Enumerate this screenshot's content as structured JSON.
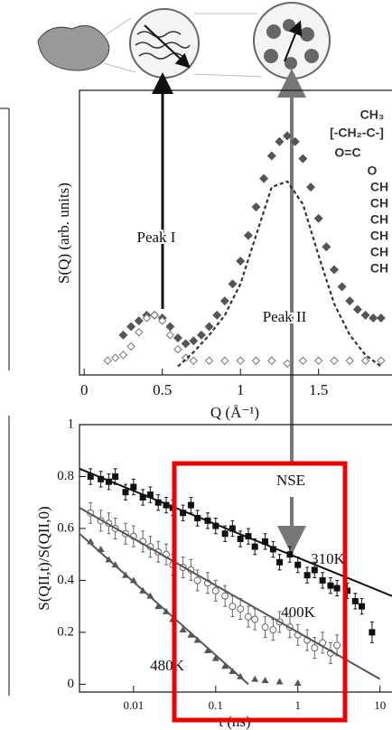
{
  "chart_data": [
    {
      "type": "scatter",
      "x_label": "Q (Å⁻¹)",
      "y_label": "S(Q) (arb. units)",
      "xlim": [
        -0.03,
        1.97
      ],
      "ylim": [
        0,
        1
      ],
      "xticks": [
        0,
        0.5,
        1,
        1.5
      ],
      "annotations": [
        "Peak I",
        "Peak II"
      ],
      "structure": [
        "CH₃",
        "[-CH₂-C-]",
        "O=C",
        "O",
        "CH",
        "CH",
        "CH",
        "CH",
        "CH",
        "CH"
      ],
      "series": [
        {
          "style": "diamond-filled",
          "color": "#555555",
          "x": [
            0.25,
            0.3,
            0.35,
            0.4,
            0.45,
            0.5,
            0.55,
            0.6,
            0.65,
            0.7,
            0.75,
            0.8,
            0.85,
            0.9,
            0.95,
            1.0,
            1.05,
            1.1,
            1.15,
            1.2,
            1.25,
            1.3,
            1.35,
            1.4,
            1.45,
            1.5,
            1.55,
            1.6,
            1.65,
            1.7,
            1.75,
            1.8,
            1.85,
            1.9
          ],
          "values": [
            0.14,
            0.17,
            0.19,
            0.21,
            0.21,
            0.2,
            0.17,
            0.13,
            0.11,
            0.12,
            0.14,
            0.17,
            0.21,
            0.26,
            0.32,
            0.4,
            0.49,
            0.59,
            0.69,
            0.77,
            0.82,
            0.84,
            0.82,
            0.76,
            0.66,
            0.55,
            0.45,
            0.37,
            0.31,
            0.26,
            0.23,
            0.21,
            0.2,
            0.2
          ]
        },
        {
          "style": "diamond-open",
          "color": "#777777",
          "x": [
            0.15,
            0.2,
            0.25,
            0.3,
            0.35,
            0.4,
            0.45,
            0.5,
            0.55,
            0.6,
            0.65,
            0.7,
            0.8,
            0.9,
            1.0,
            1.1,
            1.2,
            1.3,
            1.4,
            1.5,
            1.6,
            1.7,
            1.8,
            1.9
          ],
          "values": [
            0.05,
            0.06,
            0.07,
            0.1,
            0.15,
            0.2,
            0.21,
            0.19,
            0.14,
            0.09,
            0.06,
            0.05,
            0.05,
            0.05,
            0.05,
            0.05,
            0.05,
            0.04,
            0.05,
            0.05,
            0.05,
            0.05,
            0.05,
            0.05
          ]
        },
        {
          "style": "dashed",
          "color": "#333333",
          "x": [
            0.6,
            0.7,
            0.8,
            0.9,
            1.0,
            1.1,
            1.2,
            1.3,
            1.4,
            1.5,
            1.6,
            1.7,
            1.8,
            1.9
          ],
          "values": [
            0.03,
            0.08,
            0.14,
            0.21,
            0.32,
            0.49,
            0.66,
            0.68,
            0.6,
            0.42,
            0.25,
            0.14,
            0.07,
            0.03
          ]
        }
      ]
    },
    {
      "type": "scatter",
      "log_x": true,
      "x_label": "t (ns)",
      "y_label": "S(QII,t)/S(QII,0)",
      "xlim": [
        0.0022,
        14
      ],
      "ylim": [
        -0.03,
        1
      ],
      "xticks": [
        0.01,
        0.1,
        1,
        10
      ],
      "yticks": [
        0,
        0.2,
        0.4,
        0.6,
        0.8,
        1
      ],
      "annotations": [
        "NSE",
        "310K",
        "400K",
        "480K"
      ],
      "series": [
        {
          "style": "square",
          "color": "#111111",
          "x": [
            0.003,
            0.004,
            0.005,
            0.006,
            0.008,
            0.01,
            0.013,
            0.016,
            0.02,
            0.025,
            0.03,
            0.04,
            0.05,
            0.06,
            0.08,
            0.1,
            0.13,
            0.16,
            0.2,
            0.25,
            0.3,
            0.4,
            0.5,
            0.6,
            0.8,
            1,
            1.3,
            1.6,
            2,
            2.5,
            3,
            4,
            5,
            6,
            8
          ],
          "values": [
            0.8,
            0.79,
            0.78,
            0.8,
            0.74,
            0.76,
            0.72,
            0.73,
            0.7,
            0.69,
            0.68,
            0.66,
            0.69,
            0.64,
            0.63,
            0.61,
            0.58,
            0.6,
            0.56,
            0.57,
            0.53,
            0.55,
            0.52,
            0.47,
            0.5,
            0.46,
            0.42,
            0.44,
            0.4,
            0.38,
            0.37,
            0.36,
            0.32,
            0.3,
            0.2
          ],
          "errors": [
            0.03,
            0.03,
            0.03,
            0.03,
            0.03,
            0.03,
            0.03,
            0.03,
            0.03,
            0.03,
            0.03,
            0.03,
            0.03,
            0.03,
            0.03,
            0.03,
            0.03,
            0.03,
            0.03,
            0.03,
            0.03,
            0.03,
            0.03,
            0.03,
            0.03,
            0.03,
            0.03,
            0.03,
            0.03,
            0.03,
            0.03,
            0.03,
            0.03,
            0.03,
            0.04
          ]
        },
        {
          "style": "circle",
          "color": "#666666",
          "x": [
            0.003,
            0.004,
            0.005,
            0.006,
            0.008,
            0.01,
            0.013,
            0.016,
            0.02,
            0.025,
            0.03,
            0.04,
            0.05,
            0.06,
            0.08,
            0.1,
            0.13,
            0.16,
            0.2,
            0.25,
            0.3,
            0.4,
            0.5,
            0.6,
            0.8,
            1,
            1.3,
            1.6,
            2,
            2.5,
            3
          ],
          "values": [
            0.66,
            0.63,
            0.62,
            0.6,
            0.58,
            0.57,
            0.55,
            0.53,
            0.51,
            0.5,
            0.46,
            0.45,
            0.44,
            0.4,
            0.39,
            0.36,
            0.34,
            0.3,
            0.29,
            0.26,
            0.25,
            0.22,
            0.21,
            0.24,
            0.22,
            0.19,
            0.17,
            0.14,
            0.16,
            0.12,
            0.15
          ],
          "errors": [
            0.04,
            0.04,
            0.04,
            0.04,
            0.04,
            0.04,
            0.04,
            0.04,
            0.04,
            0.04,
            0.04,
            0.04,
            0.04,
            0.04,
            0.04,
            0.04,
            0.04,
            0.04,
            0.04,
            0.04,
            0.04,
            0.04,
            0.04,
            0.04,
            0.04,
            0.04,
            0.04,
            0.04,
            0.04,
            0.04,
            0.04
          ]
        },
        {
          "style": "triangle",
          "color": "#555555",
          "x": [
            0.003,
            0.004,
            0.005,
            0.006,
            0.008,
            0.01,
            0.013,
            0.016,
            0.02,
            0.025,
            0.03,
            0.04,
            0.05,
            0.06,
            0.08,
            0.1,
            0.13,
            0.16,
            0.2,
            0.3,
            0.4,
            0.6,
            1
          ],
          "values": [
            0.55,
            0.52,
            0.48,
            0.46,
            0.42,
            0.4,
            0.36,
            0.34,
            0.3,
            0.28,
            0.25,
            0.21,
            0.19,
            0.17,
            0.13,
            0.1,
            0.07,
            0.05,
            0.03,
            0.02,
            0.015,
            0.01,
            0.005
          ]
        },
        {
          "style": "line",
          "color": "#111111",
          "x": [
            0.0022,
            14
          ],
          "values": [
            0.83,
            0.34
          ]
        },
        {
          "style": "line",
          "color": "#555555",
          "x": [
            0.0022,
            10
          ],
          "values": [
            0.68,
            0.02
          ]
        },
        {
          "style": "line",
          "color": "#555555",
          "x": [
            0.0022,
            0.25
          ],
          "values": [
            0.58,
            0
          ]
        }
      ]
    }
  ]
}
